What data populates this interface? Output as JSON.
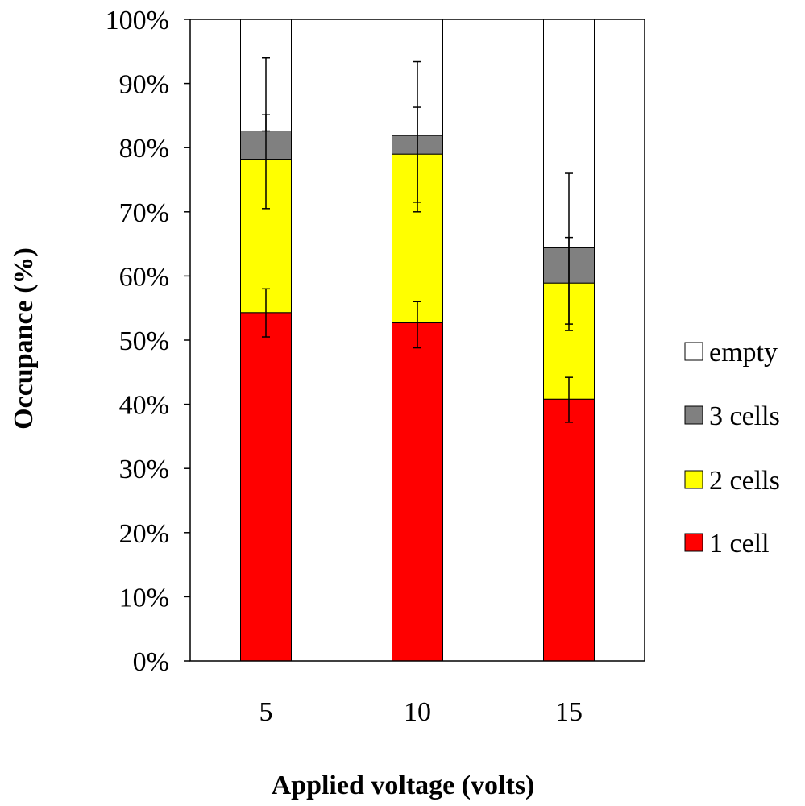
{
  "chart_data": {
    "type": "stacked-bar",
    "title": "",
    "xlabel": "Applied voltage (volts)",
    "ylabel": "Occupance (%)",
    "ylim": [
      0,
      100
    ],
    "yticks": [
      "0%",
      "10%",
      "20%",
      "30%",
      "40%",
      "50%",
      "60%",
      "70%",
      "80%",
      "90%",
      "100%"
    ],
    "categories": [
      "5",
      "10",
      "15"
    ],
    "series": [
      {
        "name": "1 cell",
        "color": "#ff0000",
        "values": [
          54.3,
          52.7,
          40.8
        ]
      },
      {
        "name": "2 cells",
        "color": "#ffff00",
        "values": [
          23.9,
          26.3,
          18.1
        ]
      },
      {
        "name": "3 cells",
        "color": "#808080",
        "values": [
          4.4,
          2.9,
          5.5
        ]
      },
      {
        "name": "empty",
        "color": "#ffffff",
        "values": [
          17.4,
          18.1,
          35.6
        ]
      }
    ],
    "error_bars": [
      {
        "category": "5",
        "level": 54.3,
        "low": 50.5,
        "high": 58.0
      },
      {
        "category": "5",
        "level": 78.2,
        "low": 70.5,
        "high": 85.2
      },
      {
        "category": "5",
        "level": 82.6,
        "low": 82.6,
        "high": 94.0
      },
      {
        "category": "10",
        "level": 52.7,
        "low": 48.8,
        "high": 56.0
      },
      {
        "category": "10",
        "level": 79.0,
        "low": 70.0,
        "high": 86.3
      },
      {
        "category": "10",
        "level": 81.9,
        "low": 71.5,
        "high": 93.4
      },
      {
        "category": "15",
        "level": 40.8,
        "low": 37.2,
        "high": 44.2
      },
      {
        "category": "15",
        "level": 58.9,
        "low": 51.5,
        "high": 66.0
      },
      {
        "category": "15",
        "level": 64.4,
        "low": 52.5,
        "high": 76.0
      }
    ],
    "legend": {
      "placement": "right",
      "entries": [
        {
          "label": "empty",
          "color": "#ffffff"
        },
        {
          "label": "3 cells",
          "color": "#808080"
        },
        {
          "label": "2 cells",
          "color": "#ffff00"
        },
        {
          "label": "1 cell",
          "color": "#ff0000"
        }
      ]
    },
    "grid": false
  }
}
